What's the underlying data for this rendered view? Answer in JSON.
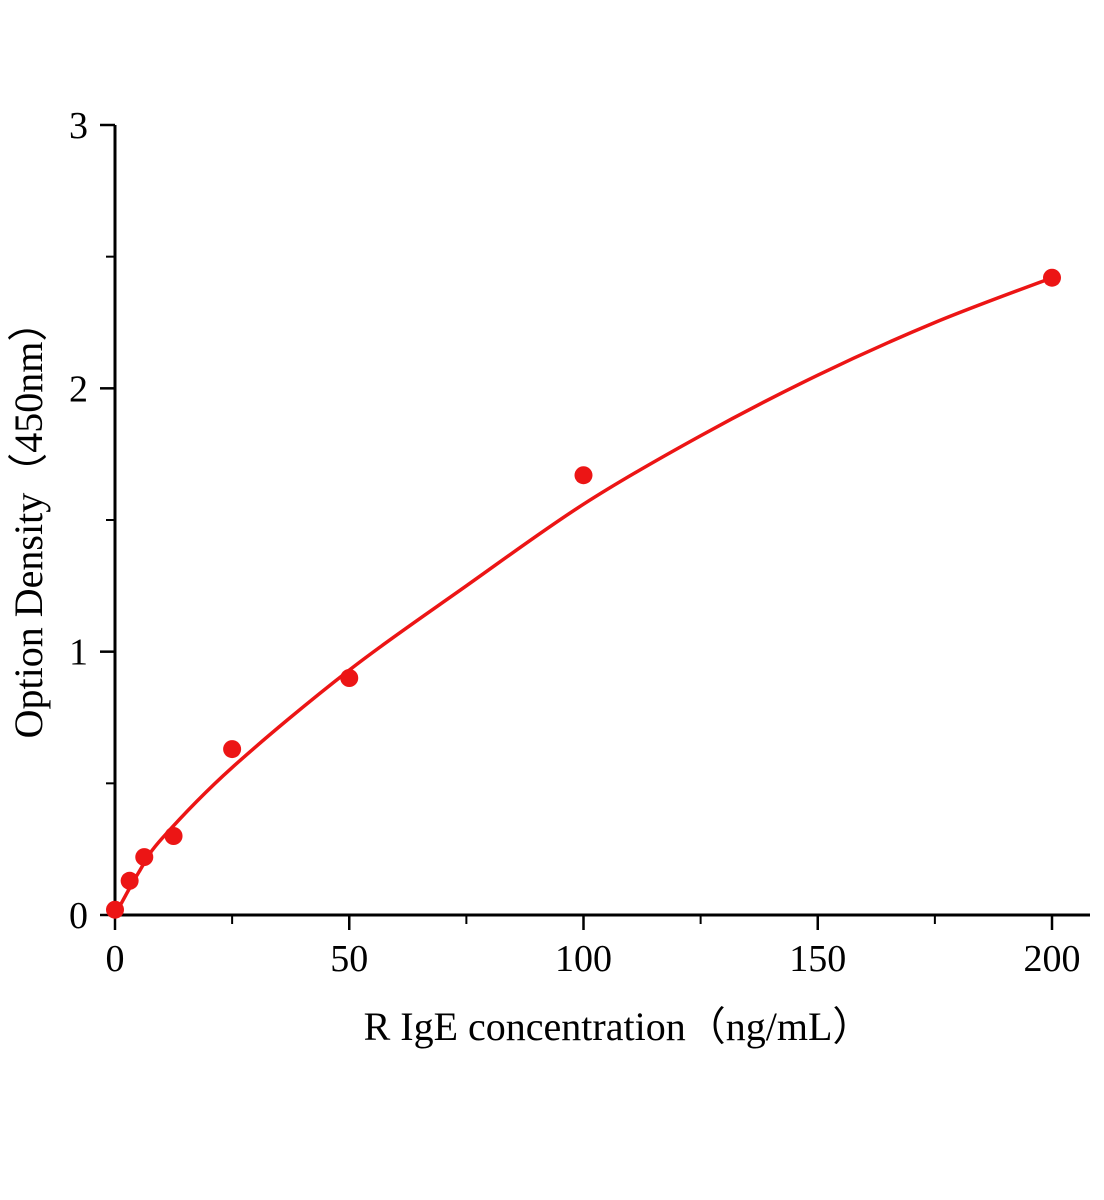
{
  "figure": {
    "background": "#ffffff"
  },
  "chart_data": {
    "type": "scatter",
    "title": "",
    "xlabel": "R IgE  concentration（ng/mL）",
    "ylabel": "Option Density（450nm）",
    "x": [
      0,
      3.125,
      6.25,
      12.5,
      25,
      50,
      100,
      200
    ],
    "y": [
      0.02,
      0.13,
      0.22,
      0.3,
      0.63,
      0.9,
      1.67,
      2.42
    ],
    "curve_points": [
      [
        0,
        0
      ],
      [
        5,
        0.16
      ],
      [
        10,
        0.29
      ],
      [
        25,
        0.56
      ],
      [
        50,
        0.93
      ],
      [
        75,
        1.25
      ],
      [
        100,
        1.56
      ],
      [
        125,
        1.82
      ],
      [
        150,
        2.05
      ],
      [
        175,
        2.25
      ],
      [
        200,
        2.42
      ]
    ],
    "xlim": [
      0,
      208
    ],
    "ylim": [
      0,
      3
    ],
    "x_ticks": [
      0,
      50,
      100,
      150,
      200
    ],
    "y_ticks": [
      0,
      1,
      2,
      3
    ],
    "x_minor_ticks": [
      25,
      75,
      125,
      175
    ],
    "y_minor_ticks": [
      0.5,
      1.5,
      2.5
    ],
    "grid": false,
    "legend": "none",
    "marker_color": "#ec1515",
    "line_color": "#ec1515",
    "axis_color": "#000000"
  }
}
